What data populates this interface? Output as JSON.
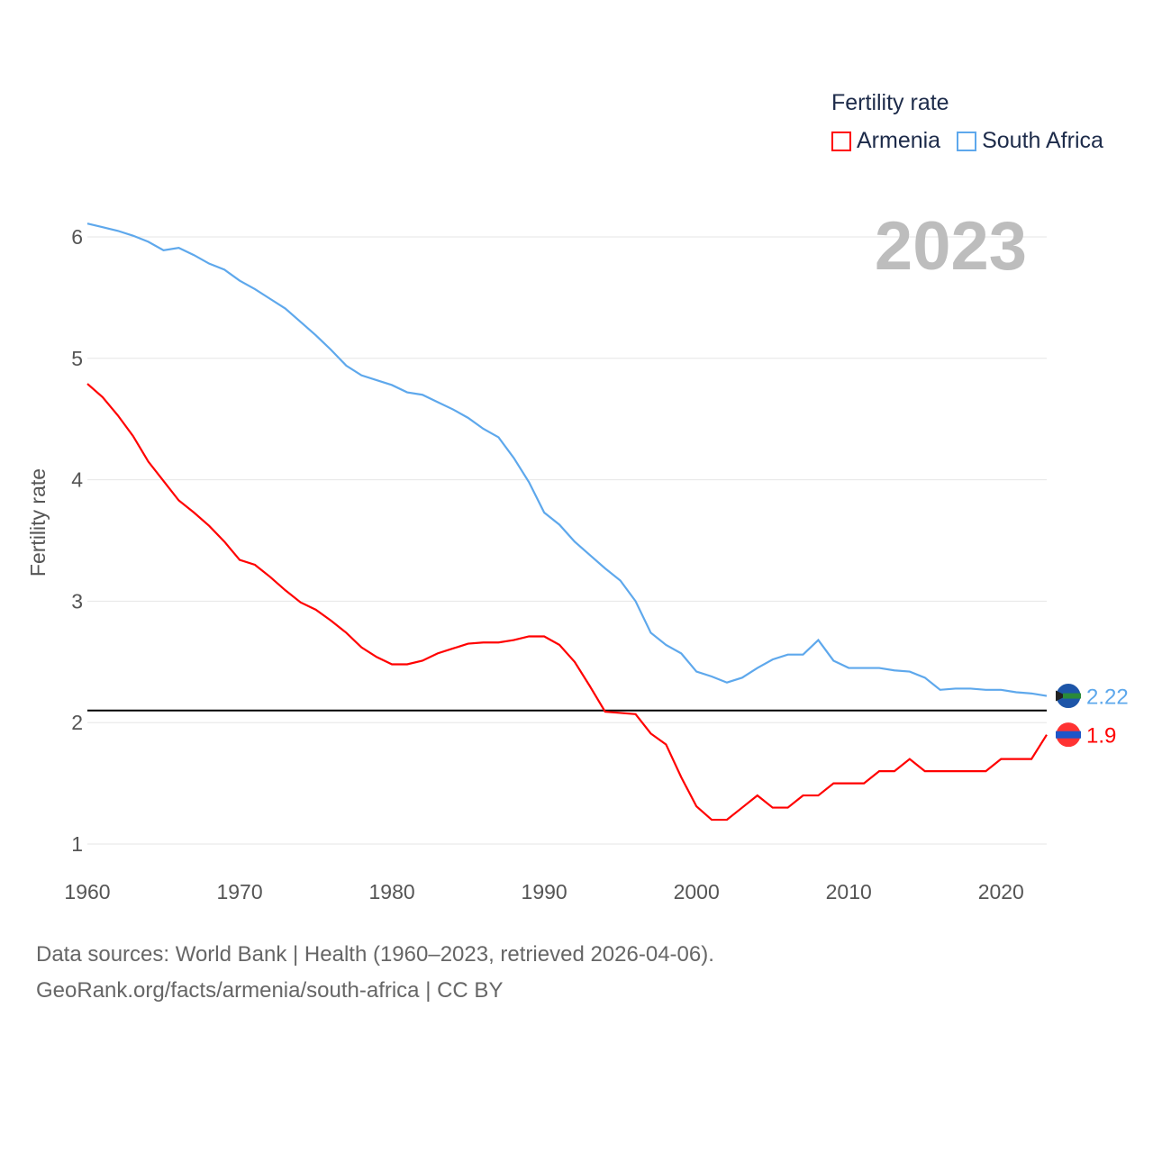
{
  "chart_data": {
    "type": "line",
    "title": "Fertility rate",
    "ylabel": "Fertility rate",
    "xlabel": "",
    "xlim": [
      1960,
      2023
    ],
    "ylim": [
      1,
      6
    ],
    "x_ticks": [
      1960,
      1970,
      1980,
      1990,
      2000,
      2010,
      2020
    ],
    "y_ticks": [
      1,
      2,
      3,
      4,
      5,
      6
    ],
    "grid": true,
    "legend_placement": "top-right",
    "current_year": "2023",
    "reference_line": 2.1,
    "series": [
      {
        "name": "Armenia",
        "color": "#ff0000",
        "end_label": "1.9",
        "values": [
          4.79,
          4.68,
          4.53,
          4.36,
          4.15,
          3.99,
          3.83,
          3.73,
          3.62,
          3.49,
          3.34,
          3.3,
          3.2,
          3.09,
          2.99,
          2.93,
          2.84,
          2.74,
          2.62,
          2.54,
          2.48,
          2.48,
          2.51,
          2.57,
          2.61,
          2.65,
          2.66,
          2.66,
          2.68,
          2.71,
          2.71,
          2.64,
          2.5,
          2.3,
          2.09,
          2.08,
          2.07,
          1.91,
          1.82,
          1.55,
          1.31,
          1.2,
          1.2,
          1.3,
          1.4,
          1.3,
          1.3,
          1.4,
          1.4,
          1.5,
          1.5,
          1.5,
          1.6,
          1.6,
          1.7,
          1.6,
          1.6,
          1.6,
          1.6,
          1.6,
          1.7,
          1.7,
          1.7,
          1.9
        ]
      },
      {
        "name": "South Africa",
        "color": "#5ea8ec",
        "end_label": "2.22",
        "values": [
          6.11,
          6.08,
          6.05,
          6.01,
          5.96,
          5.89,
          5.91,
          5.85,
          5.78,
          5.73,
          5.64,
          5.57,
          5.49,
          5.41,
          5.3,
          5.19,
          5.07,
          4.94,
          4.86,
          4.82,
          4.78,
          4.72,
          4.7,
          4.64,
          4.58,
          4.51,
          4.42,
          4.35,
          4.18,
          3.98,
          3.73,
          3.63,
          3.49,
          3.38,
          3.27,
          3.17,
          3.0,
          2.74,
          2.64,
          2.57,
          2.42,
          2.38,
          2.33,
          2.37,
          2.45,
          2.52,
          2.56,
          2.56,
          2.68,
          2.51,
          2.45,
          2.45,
          2.45,
          2.43,
          2.42,
          2.37,
          2.27,
          2.28,
          2.28,
          2.27,
          2.27,
          2.25,
          2.24,
          2.22
        ]
      }
    ]
  },
  "footer": {
    "line1": "Data sources: World Bank | Health (1960–2023, retrieved 2026-04-06).",
    "line2": "GeoRank.org/facts/armenia/south-africa | CC BY"
  }
}
